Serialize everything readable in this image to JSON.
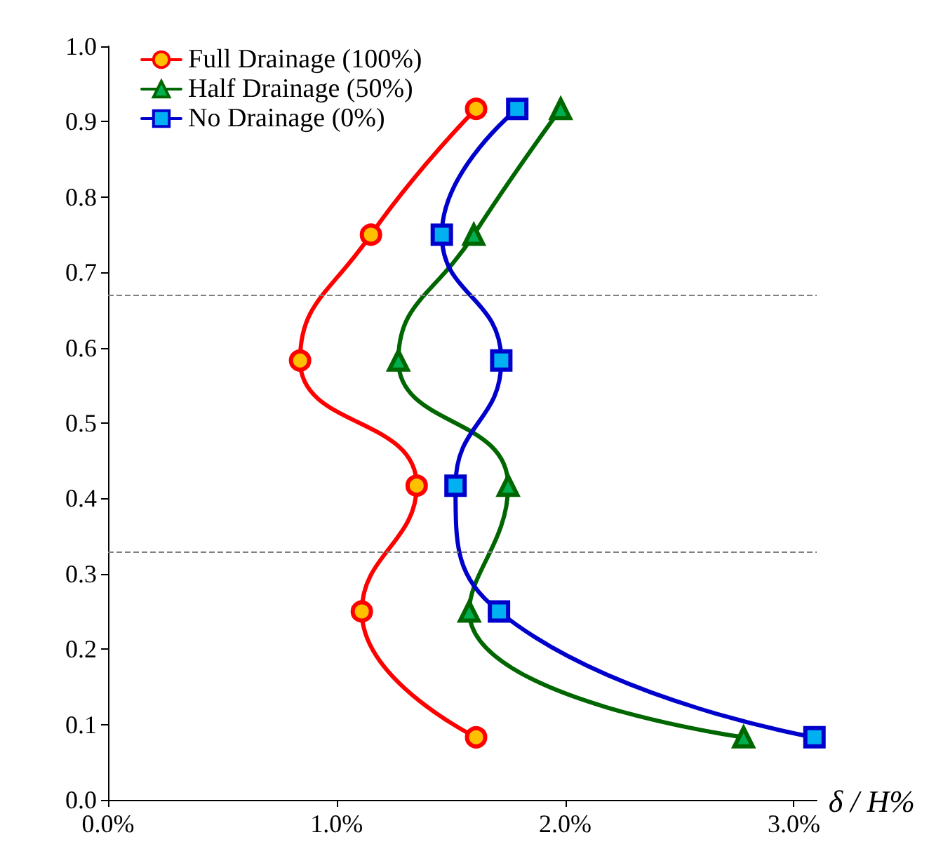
{
  "chart_data": {
    "type": "line",
    "xlabel": "δ / H%",
    "series": [
      {
        "name": "Full Drainage (100%)",
        "color": "#ff0000",
        "marker": "circle",
        "x": [
          1.61,
          1.11,
          1.35,
          0.84,
          1.15,
          1.61
        ],
        "values": [
          0.083,
          0.25,
          0.417,
          0.583,
          0.75,
          0.917
        ]
      },
      {
        "name": "Half Drainage (50%)",
        "color": "#006600",
        "marker": "triangle",
        "x": [
          2.78,
          1.58,
          1.75,
          1.27,
          1.6,
          1.98
        ],
        "values": [
          0.083,
          0.25,
          0.417,
          0.583,
          0.75,
          0.917
        ]
      },
      {
        "name": "No Drainage (0%)",
        "color": "#0000cc",
        "marker": "square",
        "x": [
          3.09,
          1.71,
          1.52,
          1.72,
          1.46,
          1.79
        ],
        "values": [
          0.083,
          0.25,
          0.417,
          0.583,
          0.75,
          0.917
        ]
      }
    ],
    "xlim": [
      0,
      3.1
    ],
    "xticks": [
      {
        "value": 0,
        "label": "0.0%"
      },
      {
        "value": 1,
        "label": "1.0%"
      },
      {
        "value": 2,
        "label": "2.0%"
      },
      {
        "value": 3,
        "label": "3.0%"
      }
    ],
    "ylim": [
      0,
      1
    ],
    "yticks": [
      {
        "value": 0,
        "label": "0.0"
      },
      0.1,
      0.2,
      0.3,
      0.4,
      0.5,
      0.6,
      0.7,
      0.8,
      0.9,
      {
        "value": 1,
        "label": "1.0"
      }
    ],
    "ref_lines": [
      {
        "axis": "y",
        "value": 0.333,
        "label": null,
        "color": "#808080",
        "line_style": "dashed"
      },
      {
        "axis": "y",
        "value": 0.667,
        "label": null,
        "color": "#808080",
        "line_style": "dashed"
      }
    ],
    "grid": false,
    "legend": "top left",
    "line_style": "solid"
  }
}
